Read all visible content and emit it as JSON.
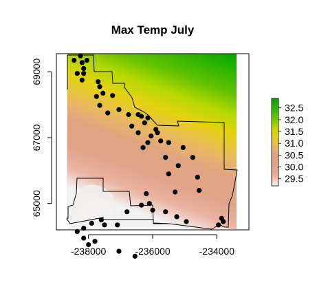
{
  "title": "Max Temp July",
  "colors": {
    "ramp": [
      "#f2f2f2",
      "#eab2a1",
      "#e0a48a",
      "#dfa580",
      "#e8b46a",
      "#e7c63a",
      "#e6d212",
      "#b7d800",
      "#65c300",
      "#00a600"
    ],
    "ramp_stops": [
      29.2,
      29.6,
      30.0,
      30.5,
      30.8,
      31.1,
      31.3,
      31.7,
      32.1,
      32.9
    ],
    "points": "#000000",
    "boundary": "#000000"
  },
  "chart_data": {
    "type": "map",
    "title": "Max Temp July",
    "x_axis": {
      "ticks": [
        -238000,
        -236000,
        -234000
      ],
      "tick_labels": [
        "-238000",
        "-236000",
        "-234000"
      ],
      "range": [
        -239000,
        -233000
      ]
    },
    "y_axis": {
      "ticks": [
        65000,
        67000,
        69000
      ],
      "tick_labels": [
        "65000",
        "67000",
        "69000"
      ],
      "range": [
        64200,
        69550
      ],
      "label_orientation": "vertical"
    },
    "raster_extent": {
      "x": [
        -238600,
        -233550
      ],
      "y": [
        64350,
        69500
      ]
    },
    "legend": {
      "placement": "right",
      "type": "colorbar",
      "range": [
        29.2,
        32.9
      ],
      "ticks": [
        29.5,
        30.0,
        30.5,
        31.0,
        31.5,
        32.0,
        32.5
      ],
      "tick_labels": [
        "29.5",
        "30.0",
        "30.5",
        "31.0",
        "31.5",
        "32.0",
        "32.5"
      ]
    },
    "points": [
      [
        -238450,
        69350
      ],
      [
        -238250,
        69480
      ],
      [
        -238200,
        69280
      ],
      [
        -238050,
        69350
      ],
      [
        -238150,
        69100
      ],
      [
        -238350,
        68950
      ],
      [
        -238200,
        68750
      ],
      [
        -238150,
        68950
      ],
      [
        -237700,
        68700
      ],
      [
        -237650,
        68550
      ],
      [
        -237550,
        68350
      ],
      [
        -237250,
        68280
      ],
      [
        -237750,
        68250
      ],
      [
        -237650,
        67980
      ],
      [
        -237400,
        67750
      ],
      [
        -237050,
        67850
      ],
      [
        -236750,
        67700
      ],
      [
        -236450,
        67700
      ],
      [
        -236350,
        67650
      ],
      [
        -236150,
        67600
      ],
      [
        -236650,
        67350
      ],
      [
        -236250,
        67450
      ],
      [
        -236450,
        67150
      ],
      [
        -235900,
        67250
      ],
      [
        -235850,
        67150
      ],
      [
        -236050,
        67050
      ],
      [
        -236150,
        66850
      ],
      [
        -235750,
        66900
      ],
      [
        -235500,
        66850
      ],
      [
        -236300,
        66700
      ],
      [
        -235600,
        66400
      ],
      [
        -235050,
        66700
      ],
      [
        -234750,
        66400
      ],
      [
        -235200,
        66150
      ],
      [
        -235500,
        65900
      ],
      [
        -234600,
        65800
      ],
      [
        -234550,
        65400
      ],
      [
        -235300,
        65350
      ],
      [
        -236200,
        65300
      ],
      [
        -236100,
        65000
      ],
      [
        -236350,
        64950
      ],
      [
        -236000,
        64800
      ],
      [
        -235600,
        64750
      ],
      [
        -235250,
        64600
      ],
      [
        -234950,
        64450
      ],
      [
        -233950,
        64350
      ],
      [
        -233850,
        64550
      ],
      [
        -233800,
        64450
      ],
      [
        -236800,
        64750
      ],
      [
        -237100,
        64350
      ],
      [
        -237600,
        64500
      ],
      [
        -237900,
        64400
      ],
      [
        -238150,
        64250
      ],
      [
        -237500,
        64350
      ],
      [
        -238350,
        64150
      ],
      [
        -238150,
        63950
      ],
      [
        -238000,
        63750
      ],
      [
        -237800,
        63850
      ],
      [
        -237050,
        63550
      ],
      [
        -236550,
        63400
      ]
    ]
  }
}
